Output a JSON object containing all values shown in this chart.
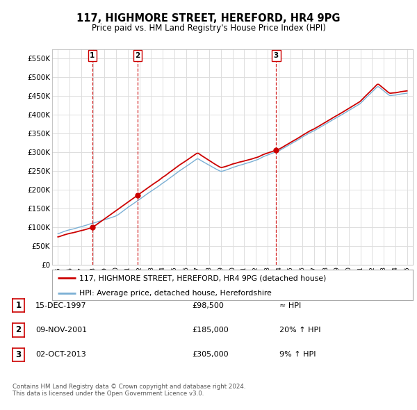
{
  "title": "117, HIGHMORE STREET, HEREFORD, HR4 9PG",
  "subtitle": "Price paid vs. HM Land Registry's House Price Index (HPI)",
  "background_color": "#ffffff",
  "plot_bg_color": "#ffffff",
  "grid_color": "#dddddd",
  "property_color": "#cc0000",
  "hpi_color": "#7aafd4",
  "ylim": [
    0,
    575000
  ],
  "yticks": [
    0,
    50000,
    100000,
    150000,
    200000,
    250000,
    300000,
    350000,
    400000,
    450000,
    500000,
    550000
  ],
  "ytick_labels": [
    "£0",
    "£50K",
    "£100K",
    "£150K",
    "£200K",
    "£250K",
    "£300K",
    "£350K",
    "£400K",
    "£450K",
    "£500K",
    "£550K"
  ],
  "sale_dates": [
    1997.96,
    2001.86,
    2013.75
  ],
  "sale_prices": [
    98500,
    185000,
    305000
  ],
  "sale_labels": [
    "1",
    "2",
    "3"
  ],
  "vline_color": "#cc0000",
  "marker_color": "#cc0000",
  "legend_entries": [
    "117, HIGHMORE STREET, HEREFORD, HR4 9PG (detached house)",
    "HPI: Average price, detached house, Herefordshire"
  ],
  "table_rows": [
    [
      "1",
      "15-DEC-1997",
      "£98,500",
      "≈ HPI"
    ],
    [
      "2",
      "09-NOV-2001",
      "£185,000",
      "20% ↑ HPI"
    ],
    [
      "3",
      "02-OCT-2013",
      "£305,000",
      "9% ↑ HPI"
    ]
  ],
  "footnote": "Contains HM Land Registry data © Crown copyright and database right 2024.\nThis data is licensed under the Open Government Licence v3.0.",
  "xlim_start": 1994.5,
  "xlim_end": 2025.5,
  "xtick_years": [
    1995,
    1996,
    1997,
    1998,
    1999,
    2000,
    2001,
    2002,
    2003,
    2004,
    2005,
    2006,
    2007,
    2008,
    2009,
    2010,
    2011,
    2012,
    2013,
    2014,
    2015,
    2016,
    2017,
    2018,
    2019,
    2020,
    2021,
    2022,
    2023,
    2024,
    2025
  ]
}
